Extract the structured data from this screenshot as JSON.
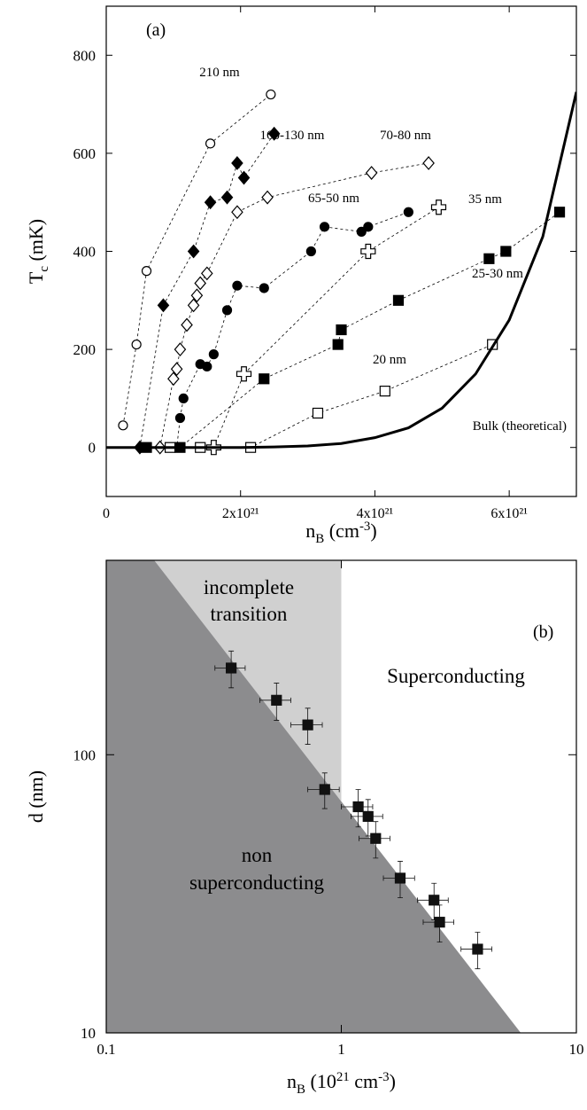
{
  "chart_data": [
    {
      "type": "line",
      "annotation": "(a)",
      "ylabel": [
        {
          "text": "T"
        },
        {
          "text": "c",
          "shift": "sub"
        },
        {
          "text": " (mK)"
        }
      ],
      "xlabel": [
        {
          "text": "n"
        },
        {
          "text": "B",
          "shift": "sub"
        },
        {
          "text": " (cm"
        },
        {
          "text": "-3",
          "shift": "super"
        },
        {
          "text": ")"
        }
      ],
      "xlim": [
        0,
        7e+21
      ],
      "ylim": [
        -100,
        900
      ],
      "xticks": [
        0,
        {
          "value": 2e+21,
          "label": "2x10²¹"
        },
        {
          "value": 4e+21,
          "label": "4x10²¹"
        },
        {
          "value": 6e+21,
          "label": "6x10²¹"
        }
      ],
      "yticks": [
        0,
        200,
        400,
        600,
        800
      ],
      "series": [
        {
          "name": "210 nm",
          "color": "#000000",
          "marker": "circle",
          "filled": false,
          "line_style": "dashed",
          "x": [
            2.5e+20,
            4.5e+20,
            6e+20,
            1.55e+21,
            2.45e+21
          ],
          "values": [
            45,
            210,
            360,
            620,
            720
          ]
        },
        {
          "name": "160-130 nm",
          "color": "#000000",
          "marker": "diamond",
          "filled": true,
          "line_style": "dashed",
          "x": [
            5e+20,
            8.5e+20,
            1.3e+21,
            1.55e+21,
            1.8e+21,
            1.95e+21,
            2.05e+21,
            2.5e+21
          ],
          "values": [
            0,
            290,
            400,
            500,
            510,
            580,
            550,
            640
          ]
        },
        {
          "name": "70-80 nm",
          "color": "#000000",
          "marker": "diamond",
          "filled": false,
          "line_style": "dashed",
          "x": [
            8e+20,
            1e+21,
            1.05e+21,
            1.1e+21,
            1.2e+21,
            1.3e+21,
            1.35e+21,
            1.4e+21,
            1.5e+21,
            1.95e+21,
            2.4e+21,
            3.95e+21,
            4.8e+21
          ],
          "values": [
            0,
            140,
            160,
            200,
            250,
            290,
            310,
            335,
            355,
            480,
            510,
            560,
            580
          ]
        },
        {
          "name": "65-50 nm",
          "color": "#000000",
          "marker": "circle",
          "filled": true,
          "line_style": "dashed",
          "x": [
            5.5e+20,
            1.05e+21,
            1.1e+21,
            1.15e+21,
            1.4e+21,
            1.5e+21,
            1.6e+21,
            1.8e+21,
            1.95e+21,
            2.35e+21,
            3.05e+21,
            3.25e+21,
            3.8e+21,
            3.9e+21,
            4.5e+21
          ],
          "values": [
            0,
            0,
            60,
            100,
            170,
            165,
            190,
            280,
            330,
            325,
            400,
            450,
            440,
            450,
            480
          ]
        },
        {
          "name": "35 nm",
          "color": "#000000",
          "marker": "plus",
          "filled": false,
          "line_style": "dashed",
          "x": [
            1.6e+21,
            2.05e+21,
            3.9e+21,
            4.95e+21
          ],
          "values": [
            0,
            150,
            400,
            490
          ]
        },
        {
          "name": "25-30 nm",
          "color": "#000000",
          "marker": "square",
          "filled": true,
          "line_style": "dashed",
          "x": [
            6e+20,
            1.1e+21,
            2.35e+21,
            3.45e+21,
            3.5e+21,
            4.35e+21,
            5.7e+21,
            5.95e+21,
            6.75e+21
          ],
          "values": [
            0,
            0,
            140,
            210,
            240,
            300,
            385,
            400,
            480
          ]
        },
        {
          "name": "20 nm",
          "color": "#000000",
          "marker": "square",
          "filled": false,
          "line_style": "dashed",
          "x": [
            9.5e+20,
            1.4e+21,
            2.15e+21,
            3.15e+21,
            4.15e+21,
            5.75e+21
          ],
          "values": [
            0,
            0,
            0,
            70,
            115,
            210
          ]
        },
        {
          "name": "Bulk (theoretical)",
          "color": "#000000",
          "line_style": "solid",
          "line_width": 3,
          "x": [
            0,
            1e+21,
            2e+21,
            2.5e+21,
            3e+21,
            3.5e+21,
            4e+21,
            4.5e+21,
            5e+21,
            5.5e+21,
            6e+21,
            6.5e+21,
            7e+21
          ],
          "values": [
            0,
            0,
            0,
            1,
            3,
            8,
            20,
            40,
            80,
            150,
            260,
            430,
            725
          ]
        }
      ]
    },
    {
      "type": "scatter",
      "annotation": "(b)",
      "ylabel": [
        {
          "text": "d (nm)"
        }
      ],
      "xlabel": [
        {
          "text": "n"
        },
        {
          "text": "B",
          "shift": "sub"
        },
        {
          "text": " (10"
        },
        {
          "text": "21",
          "shift": "super"
        },
        {
          "text": " cm"
        },
        {
          "text": "-3",
          "shift": "super"
        },
        {
          "text": ")"
        }
      ],
      "xscale": "log",
      "yscale": "log",
      "xlim": [
        0.1,
        10
      ],
      "ylim": [
        10,
        500
      ],
      "xticks": [
        0.1,
        1,
        10
      ],
      "yticks": [
        10,
        100
      ],
      "regions": [
        {
          "label": [
            "non",
            "superconducting"
          ],
          "color": "#8c8c8e",
          "boundary_x": [
            0.16,
            5.8
          ],
          "boundary_y": [
            500,
            10
          ]
        },
        {
          "label": [
            "incomplete",
            "transition"
          ],
          "color": "#d0d0d0",
          "limit_x": 1
        },
        {
          "label": [
            "Superconducting"
          ],
          "color": "#ffffff"
        }
      ],
      "series": [
        {
          "color": "#111111",
          "marker": "square",
          "x": [
            0.34,
            0.53,
            0.72,
            0.85,
            1.18,
            1.3,
            1.4,
            1.78,
            2.48,
            2.62,
            3.8
          ],
          "values": [
            205,
            157,
            128,
            75,
            65,
            60,
            50,
            36,
            30,
            25,
            20
          ],
          "xerr": [
            0.05,
            0.08,
            0.11,
            0.13,
            0.18,
            0.2,
            0.21,
            0.27,
            0.37,
            0.39,
            0.57
          ],
          "yerr": [
            31,
            24,
            19,
            11,
            10,
            9,
            7.5,
            5.4,
            4.5,
            3.8,
            3
          ]
        }
      ]
    }
  ]
}
